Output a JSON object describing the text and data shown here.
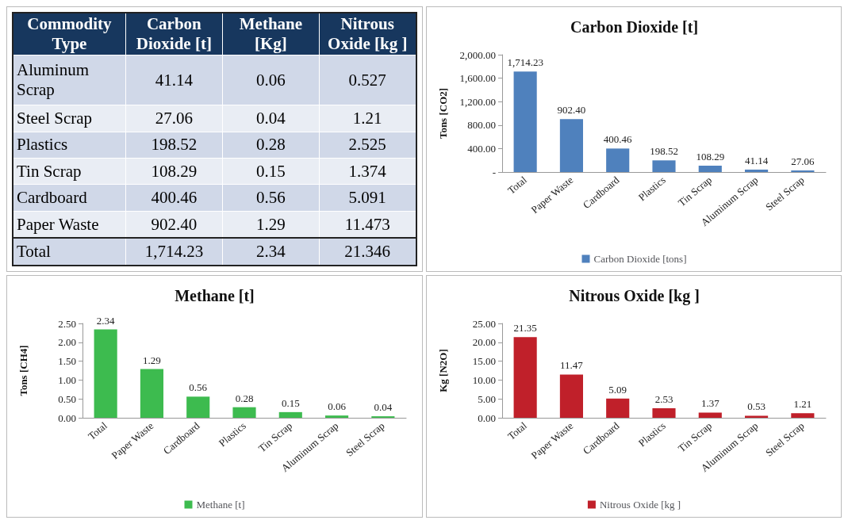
{
  "chart_data": [
    {
      "type": "other",
      "categories": [
        "Commodity Type",
        "Carbon Dioxide [t]",
        "Methane [Kg]",
        "Nitrous Oxide [kg ]"
      ],
      "y_categories": [
        "Aluminum Scrap",
        "Steel Scrap",
        "Plastics",
        "Tin Scrap",
        "Cardboard",
        "Paper Waste",
        "Total"
      ],
      "cell_labels": [
        [
          "41.14",
          "0.06",
          "0.527"
        ],
        [
          "27.06",
          "0.04",
          "1.21"
        ],
        [
          "198.52",
          "0.28",
          "2.525"
        ],
        [
          "108.29",
          "0.15",
          "1.374"
        ],
        [
          "400.46",
          "0.56",
          "5.091"
        ],
        [
          "902.40",
          "1.29",
          "11.473"
        ],
        [
          "1,714.23",
          "2.34",
          "21.346"
        ]
      ]
    },
    {
      "type": "bar",
      "title": "Carbon Dioxide [t]",
      "ylabel": "Tons [CO2]",
      "categories": [
        "Total",
        "Paper Waste",
        "Cardboard",
        "Plastics",
        "Tin Scrap",
        "Aluminum Scrap",
        "Steel Scrap"
      ],
      "series": [
        {
          "name": "Carbon Dioxide [tons]",
          "color": "#4f81bd",
          "values": [
            1714.23,
            902.4,
            400.46,
            198.52,
            108.29,
            41.14,
            27.06
          ],
          "value_labels": [
            "1,714.23",
            "902.40",
            "400.46",
            "198.52",
            "108.29",
            "41.14",
            "27.06"
          ]
        }
      ],
      "ylim": [
        0,
        2000
      ],
      "yticks": [
        {
          "value": 0,
          "label": "-"
        },
        {
          "value": 400,
          "label": "400.00"
        },
        {
          "value": 800,
          "label": "800.00"
        },
        {
          "value": 1200,
          "label": "1,200.00"
        },
        {
          "value": 1600,
          "label": "1,600.00"
        },
        {
          "value": 2000,
          "label": "2,000.00"
        }
      ],
      "grid": false,
      "legend": "bottom"
    },
    {
      "type": "bar",
      "title": "Methane [t]",
      "ylabel": "Tons [CH4]",
      "categories": [
        "Total",
        "Paper Waste",
        "Cardboard",
        "Plastics",
        "Tin Scrap",
        "Aluminum Scrap",
        "Steel Scrap"
      ],
      "series": [
        {
          "name": "Methane [t]",
          "color": "#3dbb4f",
          "values": [
            2.34,
            1.29,
            0.56,
            0.28,
            0.15,
            0.06,
            0.04
          ],
          "value_labels": [
            "2.34",
            "1.29",
            "0.56",
            "0.28",
            "0.15",
            "0.06",
            "0.04"
          ]
        }
      ],
      "ylim": [
        0,
        2.5
      ],
      "yticks": [
        {
          "value": 0,
          "label": "0.00"
        },
        {
          "value": 0.5,
          "label": "0.50"
        },
        {
          "value": 1,
          "label": "1.00"
        },
        {
          "value": 1.5,
          "label": "1.50"
        },
        {
          "value": 2,
          "label": "2.00"
        },
        {
          "value": 2.5,
          "label": "2.50"
        }
      ],
      "grid": false,
      "legend": "bottom"
    },
    {
      "type": "bar",
      "title": "Nitrous Oxide [kg ]",
      "ylabel": "Kg [N2O]",
      "categories": [
        "Total",
        "Paper Waste",
        "Cardboard",
        "Plastics",
        "Tin Scrap",
        "Aluminum Scrap",
        "Steel Scrap"
      ],
      "series": [
        {
          "name": "Nitrous Oxide [kg ]",
          "color": "#c0202a",
          "values": [
            21.35,
            11.47,
            5.09,
            2.53,
            1.37,
            0.53,
            1.21
          ],
          "value_labels": [
            "21.35",
            "11.47",
            "5.09",
            "2.53",
            "1.37",
            "0.53",
            "1.21"
          ]
        }
      ],
      "ylim": [
        0,
        25
      ],
      "yticks": [
        {
          "value": 0,
          "label": "0.00"
        },
        {
          "value": 5,
          "label": "5.00"
        },
        {
          "value": 10,
          "label": "10.00"
        },
        {
          "value": 15,
          "label": "15.00"
        },
        {
          "value": 20,
          "label": "20.00"
        },
        {
          "value": 25,
          "label": "25.00"
        }
      ],
      "grid": false,
      "legend": "bottom"
    }
  ]
}
